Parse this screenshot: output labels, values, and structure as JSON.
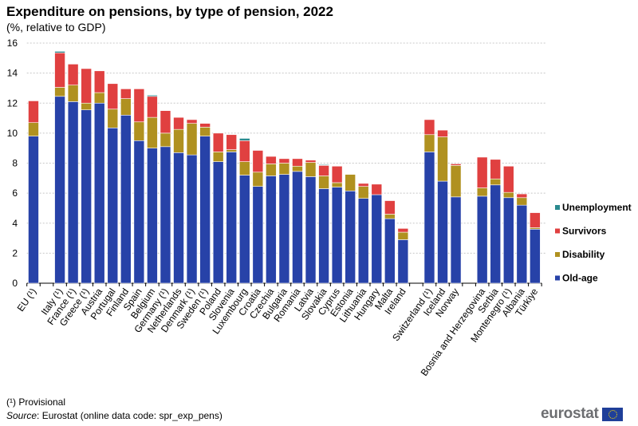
{
  "chart_data": {
    "type": "bar",
    "stacked": true,
    "title": "Expenditure on pensions, by type of pension, 2022",
    "subtitle": "(%, relative to GDP)",
    "ylim": [
      0,
      16
    ],
    "yticks": [
      0,
      2,
      4,
      6,
      8,
      10,
      12,
      14,
      16
    ],
    "grid": true,
    "legend_position": "right",
    "categories": [
      "EU (¹)",
      "",
      "Italy (¹)",
      "France (¹)",
      "Greece (¹)",
      "Austria",
      "Portugal",
      "Finland",
      "Spain",
      "Belgium",
      "Germany (¹)",
      "Netherlands",
      "Denmark (¹)",
      "Sweden (¹)",
      "Poland",
      "Slovenia",
      "Luxembourg",
      "Croatia",
      "Czechia",
      "Bulgaria",
      "Romania",
      "Latvia",
      "Slovakia",
      "Cyprus",
      "Estonia",
      "Lithuania",
      "Hungary",
      "Malta",
      "Ireland",
      "",
      "Switzerland (¹)",
      "Iceland",
      "Norway",
      "",
      "Bosnia and Herzegovina",
      "Serbia",
      "Montenegro (¹)",
      "Albania",
      "Türkiye"
    ],
    "series": [
      {
        "name": "Old-age",
        "color": "#2742a8",
        "values": [
          9.8,
          null,
          12.45,
          12.1,
          11.55,
          12.0,
          10.35,
          11.2,
          9.5,
          9.0,
          9.1,
          8.7,
          8.55,
          9.8,
          8.1,
          8.75,
          7.2,
          6.45,
          7.15,
          7.25,
          7.45,
          7.1,
          6.3,
          6.4,
          6.15,
          5.65,
          5.9,
          4.3,
          2.9,
          null,
          8.75,
          6.8,
          5.75,
          null,
          5.8,
          6.55,
          5.7,
          5.2,
          3.6
        ]
      },
      {
        "name": "Disability",
        "color": "#b09120",
        "values": [
          0.9,
          null,
          0.6,
          1.1,
          0.45,
          0.7,
          1.25,
          1.1,
          1.25,
          2.05,
          0.9,
          1.55,
          2.1,
          0.6,
          0.65,
          0.15,
          0.9,
          0.95,
          0.8,
          0.75,
          0.35,
          0.95,
          0.85,
          0.3,
          1.1,
          0.8,
          0.0,
          0.3,
          0.5,
          null,
          1.15,
          2.95,
          2.1,
          null,
          0.55,
          0.4,
          0.35,
          0.5,
          0.1
        ]
      },
      {
        "name": "Survivors",
        "color": "#e04040",
        "values": [
          1.45,
          null,
          2.3,
          1.4,
          2.3,
          1.45,
          1.7,
          0.65,
          2.2,
          1.4,
          1.5,
          0.8,
          0.25,
          0.25,
          1.25,
          1.0,
          1.4,
          1.45,
          0.5,
          0.3,
          0.5,
          0.15,
          0.7,
          1.1,
          0.0,
          0.2,
          0.7,
          0.9,
          0.25,
          null,
          1.0,
          0.45,
          0.1,
          null,
          2.05,
          1.3,
          1.75,
          0.25,
          1.0
        ]
      },
      {
        "name": "Unemployment",
        "color": "#2a8a8f",
        "values": [
          0,
          null,
          0.1,
          0,
          0,
          0,
          0,
          0,
          0,
          0.08,
          0,
          0,
          0,
          0,
          0,
          0,
          0.15,
          0,
          0,
          0,
          0,
          0,
          0.05,
          0,
          0,
          0,
          0,
          0,
          0,
          null,
          0,
          0,
          0,
          null,
          0,
          0,
          0,
          0,
          0
        ]
      }
    ],
    "legend_order": [
      "Unemployment",
      "Survivors",
      "Disability",
      "Old-age"
    ]
  },
  "footnote": "(¹) Provisional",
  "source_label": "Source",
  "source_text": ": Eurostat (online data code: spr_exp_pens)",
  "logo": "eurostat"
}
